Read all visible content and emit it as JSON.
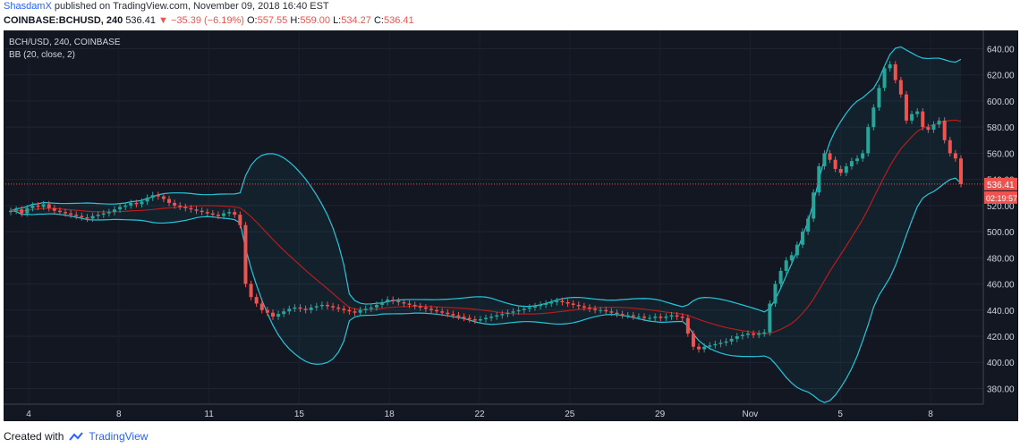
{
  "header": {
    "author": "ShasdamX",
    "published": "published on TradingView.com, November 09, 2018 16:40 EST",
    "symbol": "COINBASE:BCHUSD, 240",
    "last": "536.41",
    "change_arrow": "▼",
    "change": "−35.39 (−6.19%)",
    "o_label": "O:",
    "o_value": "557.55",
    "h_label": "H:",
    "h_value": "559.00",
    "l_label": "L:",
    "l_value": "534.27",
    "c_label": "C:",
    "c_value": "536.41"
  },
  "legend": {
    "title": "BCH/USD, 240, COINBASE",
    "indicator": "BB (20, close, 2)"
  },
  "footer": {
    "created_with": "Created with",
    "brand": "TradingView",
    "icon": "tradingview-logo-icon"
  },
  "colors": {
    "background": "#131722",
    "up": "#26a69a",
    "down": "#ef5350",
    "band": "#26c6da",
    "basis": "#b71c1c",
    "axis_text": "#d1d4dc"
  },
  "chart_data": {
    "type": "candlestick",
    "title": "BCH/USD, 240, COINBASE",
    "indicator": "BB (20, close, 2)",
    "x_ticks": [
      "4",
      "8",
      "11",
      "15",
      "18",
      "22",
      "25",
      "29",
      "Nov",
      "5",
      "8"
    ],
    "y_ticks": [
      "640.00",
      "620.00",
      "600.00",
      "580.00",
      "560.00",
      "540.00",
      "520.00",
      "500.00",
      "480.00",
      "460.00",
      "440.00",
      "420.00",
      "400.00",
      "380.00"
    ],
    "ylim": [
      368,
      654
    ],
    "price_label": "536.41",
    "time_label": "02:19:57",
    "closes": [
      516,
      517,
      514,
      518,
      520,
      519,
      521,
      518,
      516,
      515,
      514,
      513,
      512,
      511,
      510,
      512,
      513,
      514,
      515,
      517,
      519,
      520,
      522,
      521,
      523,
      526,
      528,
      527,
      525,
      522,
      520,
      519,
      518,
      517,
      516,
      515,
      514,
      513,
      512,
      514,
      515,
      513,
      505,
      460,
      450,
      445,
      440,
      438,
      435,
      437,
      439,
      441,
      442,
      441,
      440,
      442,
      443,
      444,
      443,
      442,
      441,
      440,
      439,
      438,
      440,
      441,
      442,
      444,
      446,
      448,
      447,
      446,
      445,
      444,
      443,
      442,
      441,
      440,
      439,
      438,
      437,
      436,
      435,
      434,
      433,
      432,
      433,
      434,
      435,
      436,
      437,
      438,
      439,
      440,
      441,
      442,
      443,
      444,
      445,
      446,
      447,
      446,
      445,
      444,
      443,
      442,
      441,
      440,
      440,
      439,
      438,
      437,
      436,
      436,
      435,
      435,
      434,
      434,
      435,
      434,
      435,
      436,
      435,
      434,
      422,
      412,
      410,
      412,
      413,
      414,
      415,
      416,
      418,
      420,
      421,
      422,
      421,
      422,
      423,
      445,
      460,
      470,
      478,
      482,
      490,
      500,
      510,
      530,
      550,
      560,
      555,
      548,
      545,
      550,
      554,
      556,
      560,
      580,
      595,
      610,
      625,
      628,
      616,
      605,
      585,
      590,
      592,
      580,
      578,
      582,
      585,
      570,
      560,
      556,
      536.41
    ]
  }
}
